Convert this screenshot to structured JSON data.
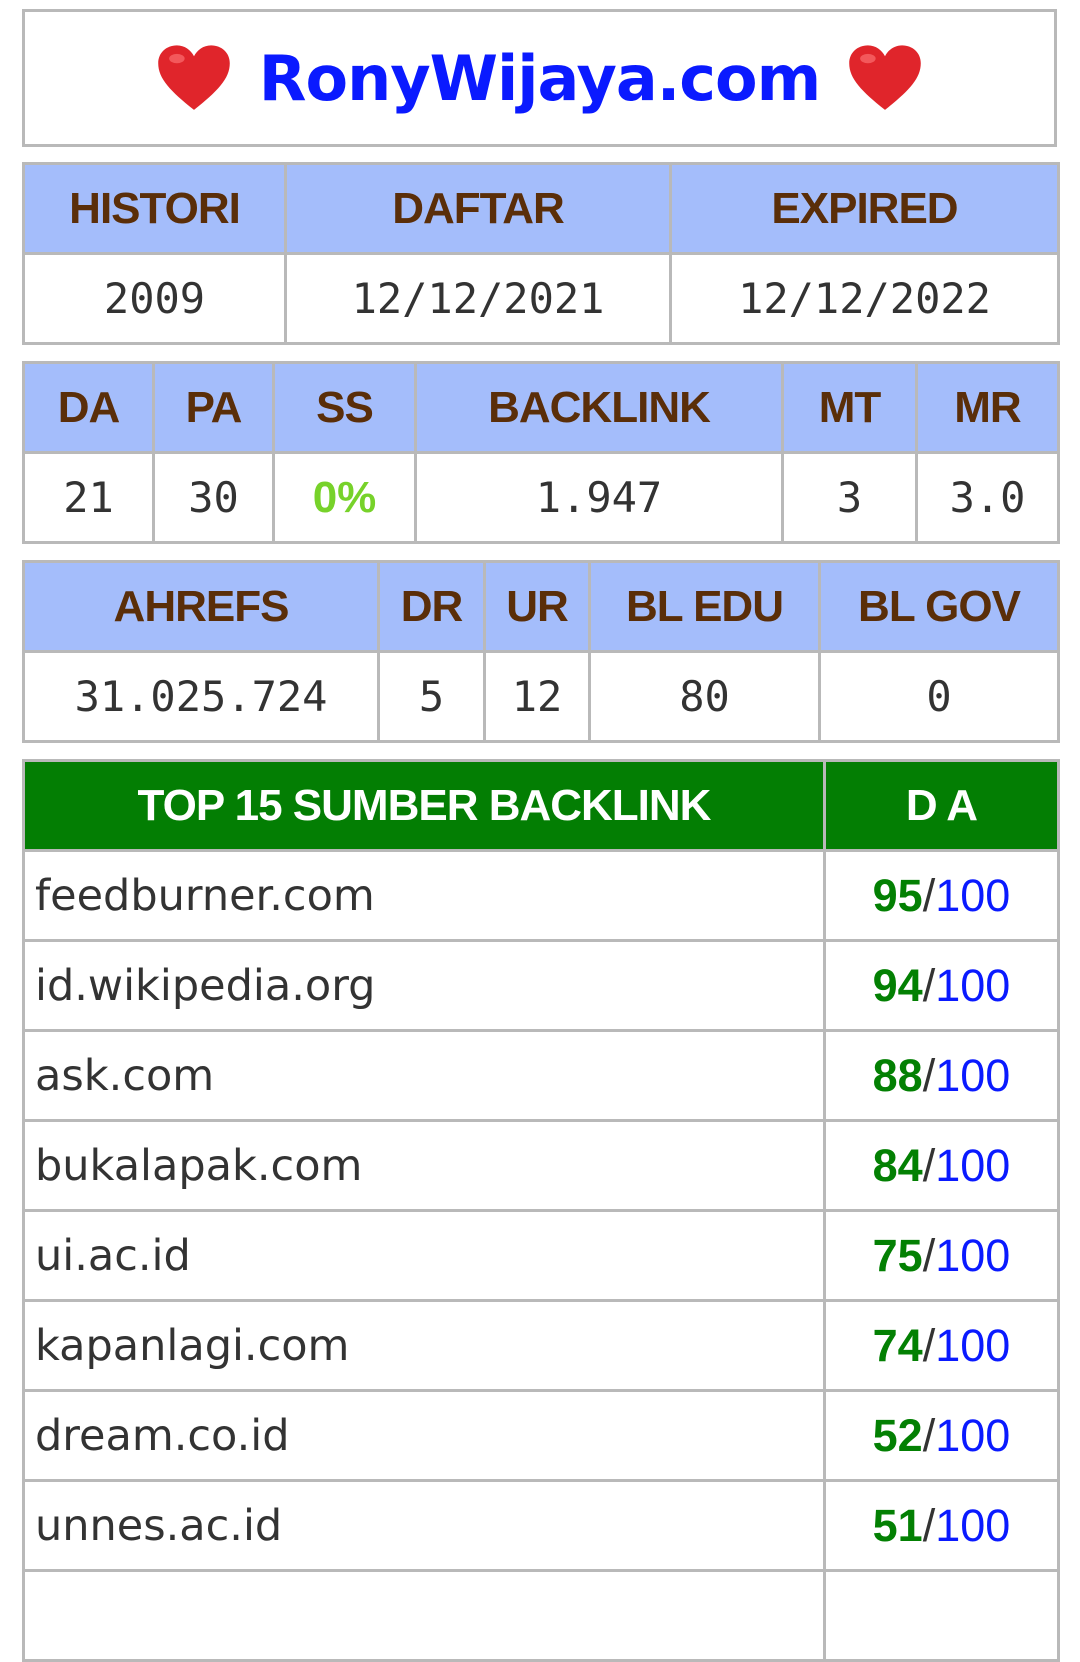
{
  "header": {
    "site_title": "RonyWijaya.com",
    "heart_icon": "red-heart-icon"
  },
  "domain_info": {
    "headers": [
      "HISTORI",
      "DAFTAR",
      "EXPIRED"
    ],
    "values": [
      "2009",
      "12/12/2021",
      "12/12/2022"
    ]
  },
  "moz_stats": {
    "headers": [
      "DA",
      "PA",
      "SS",
      "BACKLINK",
      "MT",
      "MR"
    ],
    "values": [
      "21",
      "30",
      "0%",
      "1.947",
      "3",
      "3.0"
    ]
  },
  "ahrefs_stats": {
    "headers": [
      "AHREFS",
      "DR",
      "UR",
      "BL EDU",
      "BL GOV"
    ],
    "values": [
      "31.025.724",
      "5",
      "12",
      "80",
      "0"
    ]
  },
  "backlinks": {
    "header_source": "TOP 15 SUMBER BACKLINK",
    "header_da": "D A",
    "rows": [
      {
        "site": "feedburner.com",
        "da": "95",
        "sep": "/",
        "max": "100"
      },
      {
        "site": "id.wikipedia.org",
        "da": "94",
        "sep": "/",
        "max": "100"
      },
      {
        "site": "ask.com",
        "da": "88",
        "sep": "/",
        "max": "100"
      },
      {
        "site": "bukalapak.com",
        "da": "84",
        "sep": "/",
        "max": "100"
      },
      {
        "site": "ui.ac.id",
        "da": "75",
        "sep": "/",
        "max": "100"
      },
      {
        "site": "kapanlagi.com",
        "da": "74",
        "sep": "/",
        "max": "100"
      },
      {
        "site": "dream.co.id",
        "da": "52",
        "sep": "/",
        "max": "100"
      },
      {
        "site": "unnes.ac.id",
        "da": "51",
        "sep": "/",
        "max": "100"
      }
    ]
  },
  "colors": {
    "header_blue": "#a4bdfb",
    "header_green": "#037e03",
    "title_blue": "#0a1aff",
    "da_green": "#038003",
    "ss_green": "#77d22a",
    "heart_red": "#e0252b"
  }
}
